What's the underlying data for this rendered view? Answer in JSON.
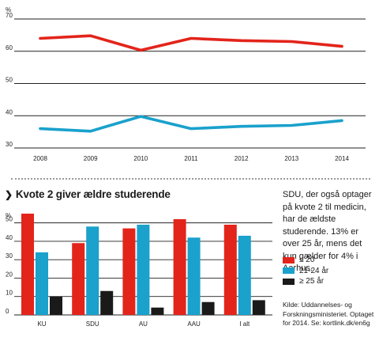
{
  "chart_data": [
    {
      "type": "line",
      "title": "",
      "ylabel": "%",
      "ylim": [
        30,
        70
      ],
      "yticks": [
        30,
        40,
        50,
        60,
        70
      ],
      "x": [
        "2008",
        "2009",
        "2010",
        "2011",
        "2012",
        "2013",
        "2014"
      ],
      "grid": true,
      "series": [
        {
          "color": "#e3241b",
          "values": [
            64,
            64.8,
            60.3,
            64,
            63.3,
            63,
            61.5
          ]
        },
        {
          "color": "#1aa1cc",
          "values": [
            36,
            35.2,
            39.8,
            36,
            36.7,
            37,
            38.5
          ]
        }
      ]
    },
    {
      "type": "bar",
      "title": "Kvote 2 giver ældre studerende",
      "ylabel": "%",
      "ylim": [
        0,
        55
      ],
      "yticks": [
        0,
        10,
        20,
        30,
        40,
        50
      ],
      "categories": [
        "KU",
        "SDU",
        "AU",
        "AAU",
        "I alt"
      ],
      "grid": true,
      "legend": "right",
      "series": [
        {
          "name": "≤ 20",
          "color": "#e3241b",
          "values": [
            55,
            39,
            47,
            52,
            49
          ]
        },
        {
          "name": "21-24 år",
          "color": "#1aa1cc",
          "values": [
            34,
            48,
            49,
            42,
            43
          ]
        },
        {
          "name": "≥ 25 år",
          "color": "#1a1a1a",
          "values": [
            10,
            13,
            4,
            7,
            8
          ]
        }
      ]
    }
  ],
  "section": {
    "chevron": "❯",
    "description": "SDU, der også optager på kvote 2 til medicin, har de ældste studerende. 13% er over 25 år, mens det kun gælder for 4% i Aarhus.",
    "source": "Kilde: Uddannelses- og Forsknings­ministeriet. Optaget for 2014. Se: kortlink.dk/en6g"
  }
}
